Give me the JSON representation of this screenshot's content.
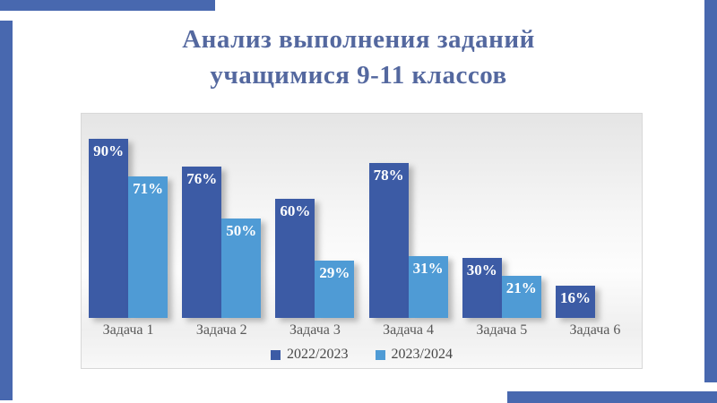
{
  "slide": {
    "title_line1": "Анализ выполнения заданий",
    "title_line2": "учащимися 9-11 классов",
    "title_color": "#54689F",
    "accent_bar_color": "#4868AF"
  },
  "chart_data": {
    "type": "bar",
    "title": "Анализ выполнения заданий учащимися 9-11 классов",
    "categories": [
      "Задача 1",
      "Задача 2",
      "Задача 3",
      "Задача 4",
      "Задача 5",
      "Задача 6"
    ],
    "series": [
      {
        "name": "2022/2023",
        "color": "#3C5BA5",
        "values": [
          90,
          76,
          60,
          78,
          30,
          16
        ]
      },
      {
        "name": "2023/2024",
        "color": "#4F9BD5",
        "values": [
          71,
          50,
          29,
          31,
          21,
          0
        ]
      }
    ],
    "value_suffix": "%",
    "ylim": [
      0,
      100
    ],
    "grid": false,
    "legend_position": "bottom",
    "data_labels": "inside-top",
    "data_label_color": "#FFFFFF",
    "axis_text_color": "#595959"
  }
}
